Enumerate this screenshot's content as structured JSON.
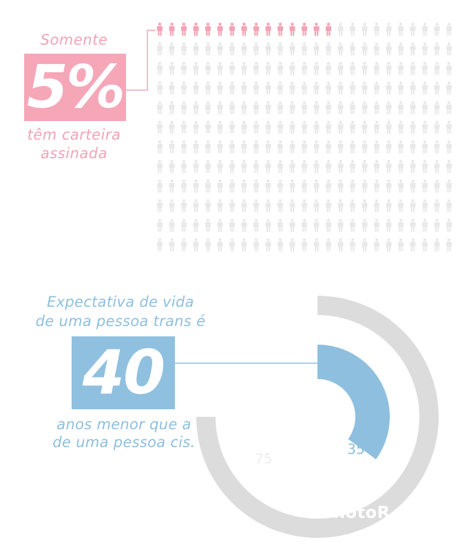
{
  "colors": {
    "pink": "#f4a3b5",
    "blue": "#8ebfdf",
    "gray": "#dcdcdc",
    "icon_inactive": "#e9e9e9"
  },
  "section1": {
    "top_text": "Somente",
    "highlight": "5%",
    "bottom_text_line1": "têm carteira",
    "bottom_text_line2": "assinada"
  },
  "section2": {
    "top_text_line1": "Expectativa de vida",
    "top_text_line2": "de uma pessoa trans é",
    "highlight": "40",
    "bottom_text_line1": "anos menor que a",
    "bottom_text_line2": "de uma pessoa cis."
  },
  "watermark": "PhotoR",
  "chart_data": [
    {
      "type": "pictogram",
      "icon": "person-icon",
      "rows": 12,
      "columns": 25,
      "highlighted_count": 15,
      "highlighted_percent": 5,
      "highlight_color": "#f4a3b5",
      "base_color": "#e9e9e9"
    },
    {
      "type": "pie",
      "style": "donut",
      "slices": [
        {
          "label": "35",
          "value": 35,
          "color": "#8ebfdf"
        },
        {
          "label": "75",
          "value": 75,
          "color": "#dcdcdc"
        }
      ]
    }
  ]
}
